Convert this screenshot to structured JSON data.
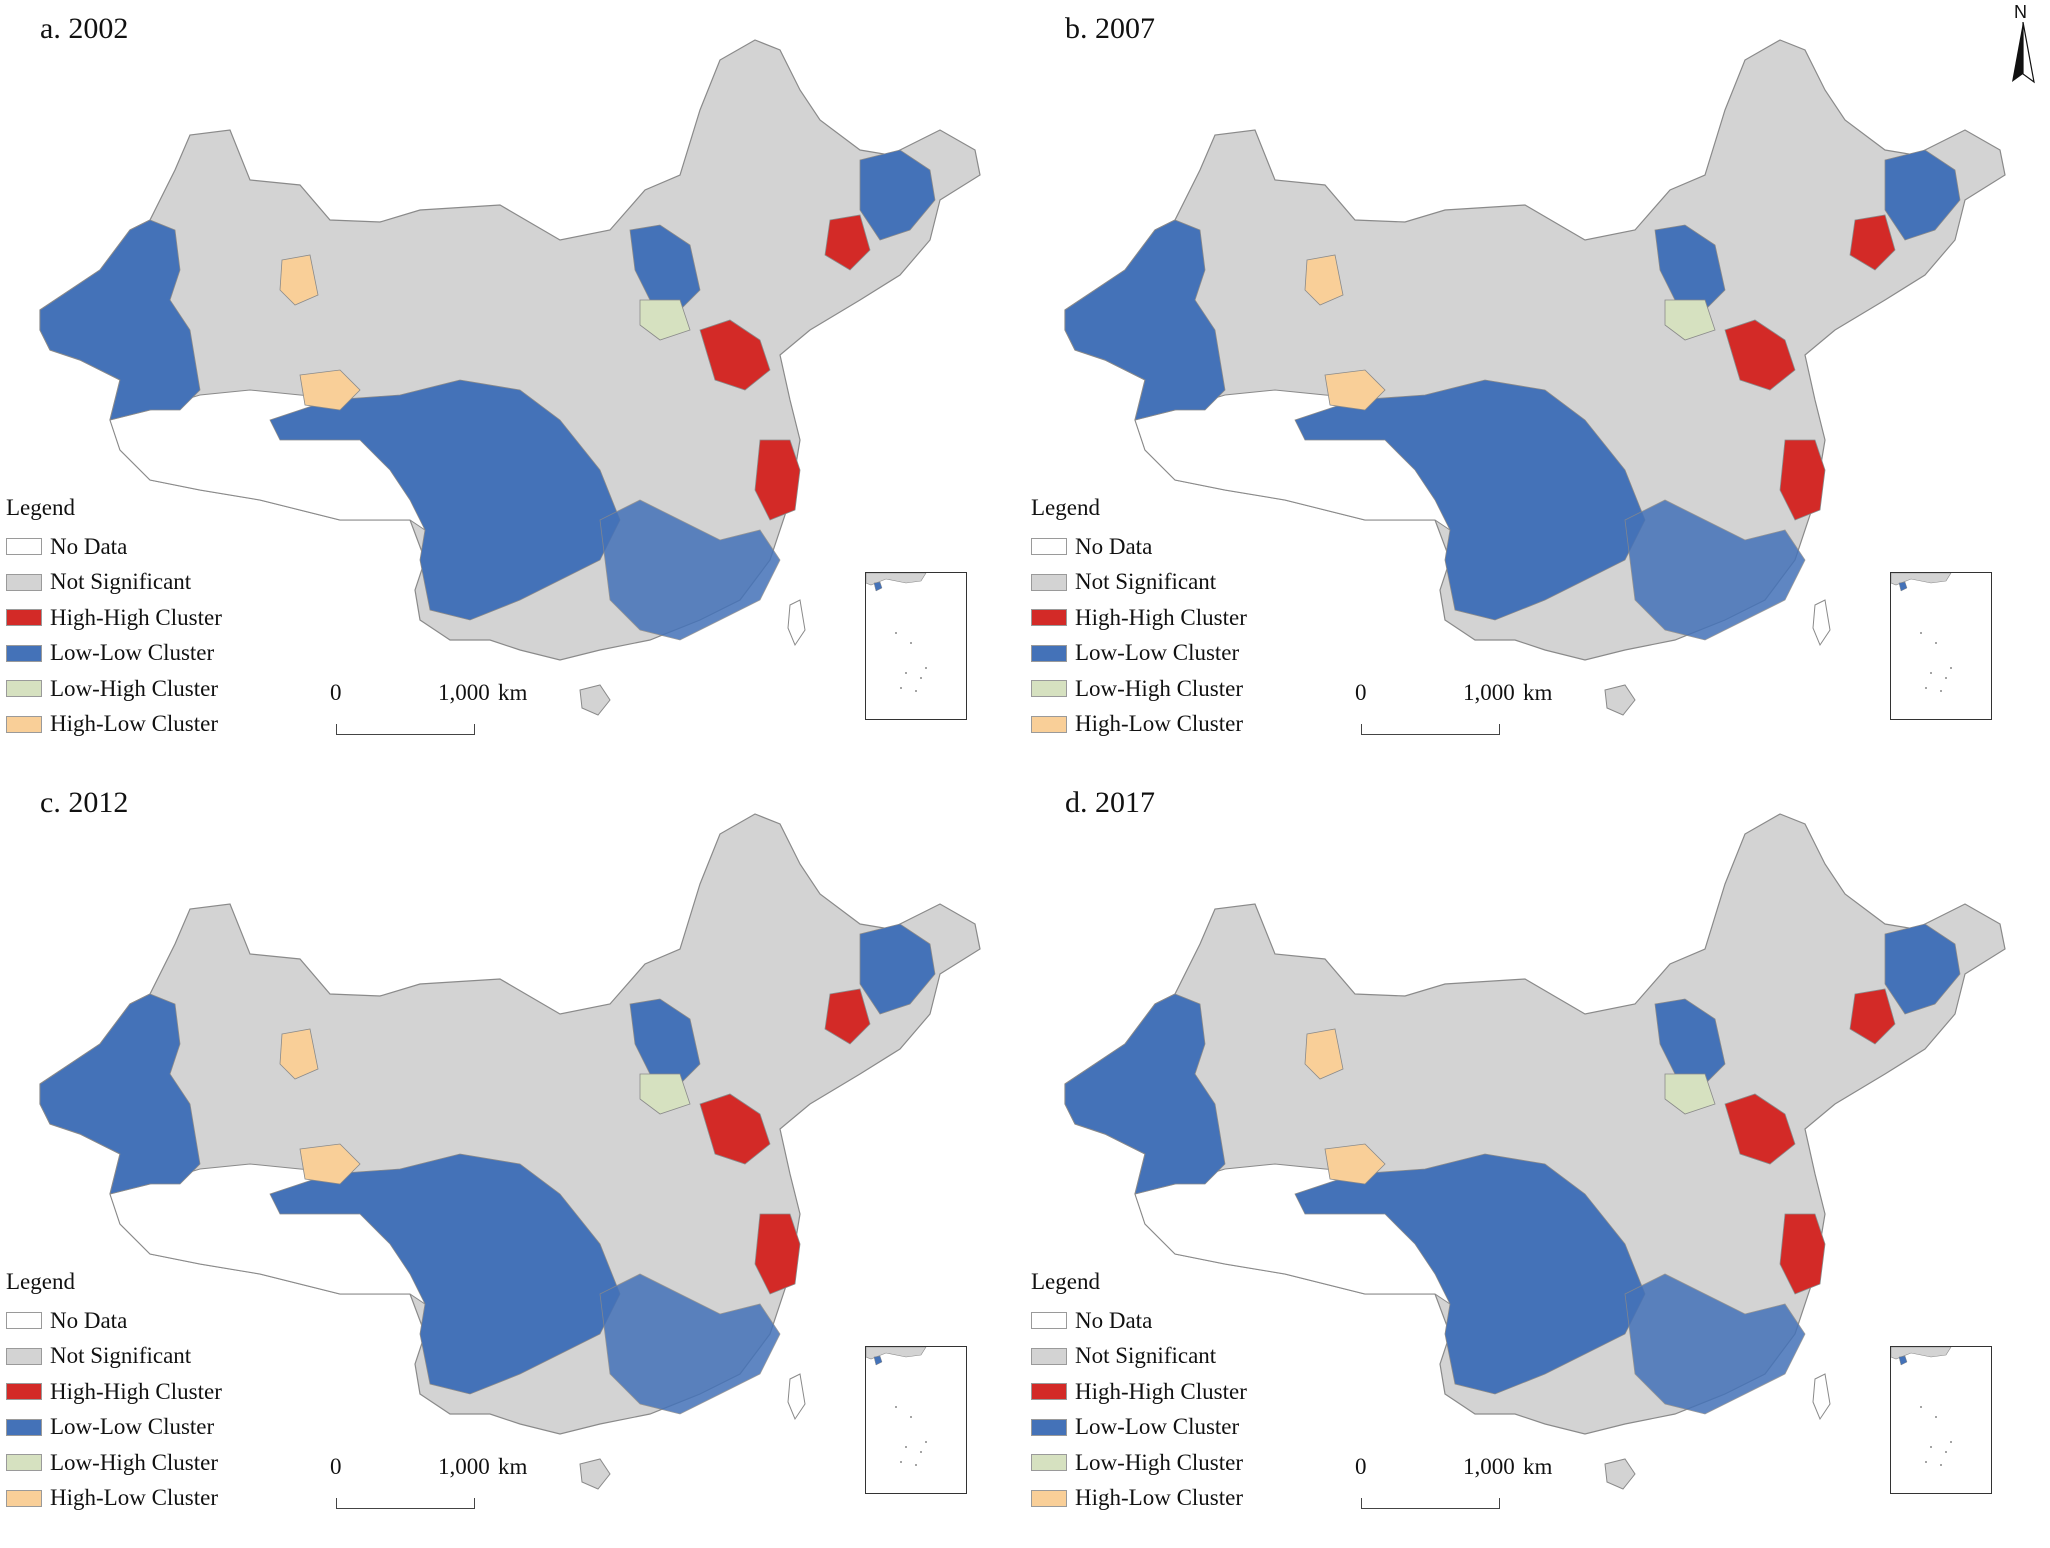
{
  "figure": {
    "panels": [
      {
        "id": "a",
        "title": "a. 2002"
      },
      {
        "id": "b",
        "title": "b. 2007"
      },
      {
        "id": "c",
        "title": "c. 2012"
      },
      {
        "id": "d",
        "title": "d. 2017"
      }
    ],
    "legend": {
      "title": "Legend",
      "items": [
        {
          "label": "No Data",
          "color": "#ffffff"
        },
        {
          "label": "Not Significant",
          "color": "#d3d3d3"
        },
        {
          "label": "High-High Cluster",
          "color": "#d32a27"
        },
        {
          "label": "Low-Low Cluster",
          "color": "#4472b8"
        },
        {
          "label": "Low-High Cluster",
          "color": "#d6e1c0"
        },
        {
          "label": "High-Low Cluster",
          "color": "#f9cf98"
        }
      ]
    },
    "scalebar": {
      "zero": "0",
      "max": "1,000",
      "unit": "km"
    },
    "north_arrow": {
      "label": "N"
    }
  },
  "map_data": {
    "map_type": "LISA cluster map (choropleth)",
    "region": "China (county level)",
    "category_colors": {
      "no_data": "#ffffff",
      "not_significant": "#d3d3d3",
      "high_high": "#d32a27",
      "low_low": "#4472b8",
      "low_high": "#d6e1c0",
      "high_low": "#f9cf98"
    }
  }
}
